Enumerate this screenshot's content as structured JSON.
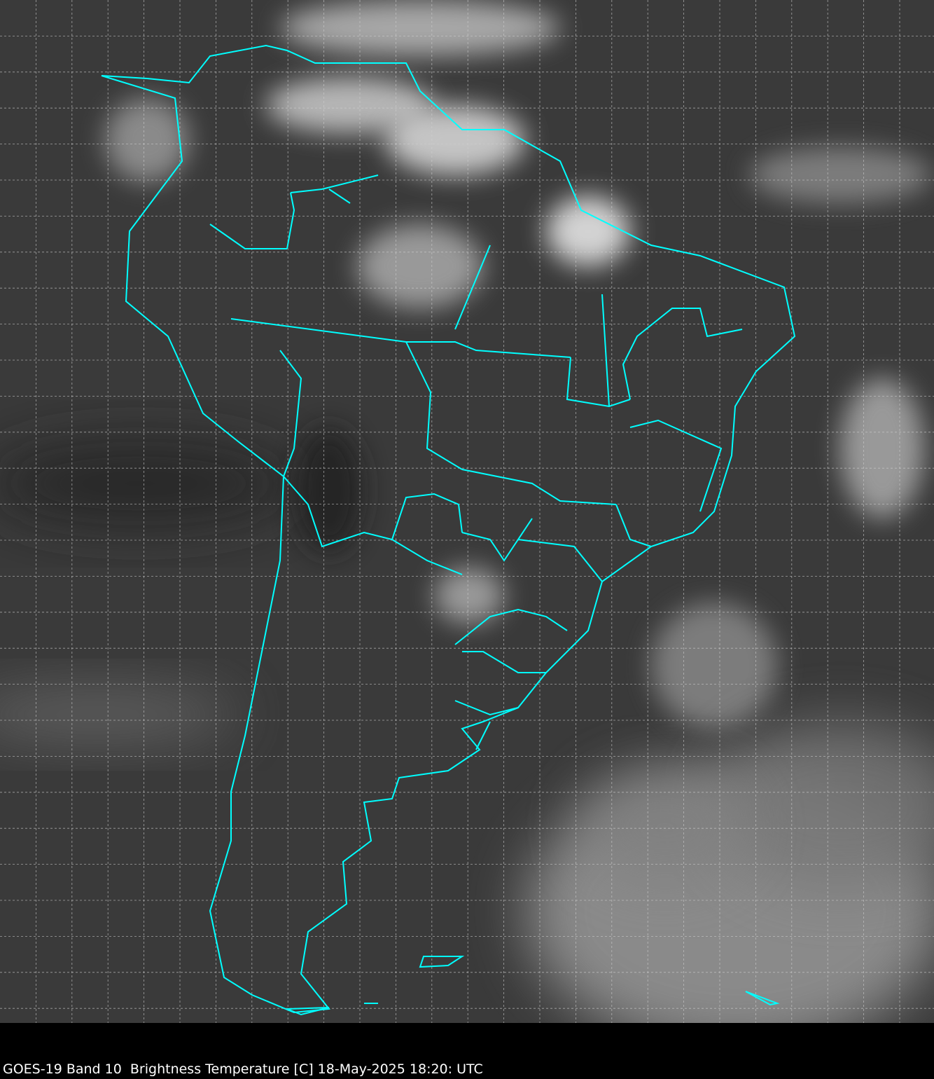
{
  "caption": "GOES-19 Band 10  Brightness Temperature [C] 18-May-2025 18:20: UTC",
  "colors": {
    "background": "#3a3a3a",
    "border_lines": "#00ffff",
    "grid": "#d0d0d0",
    "caption_bar": "#000000"
  },
  "map": {
    "projection_grid": "dashed lat/lon graticule",
    "overlay": "country and state borders"
  }
}
